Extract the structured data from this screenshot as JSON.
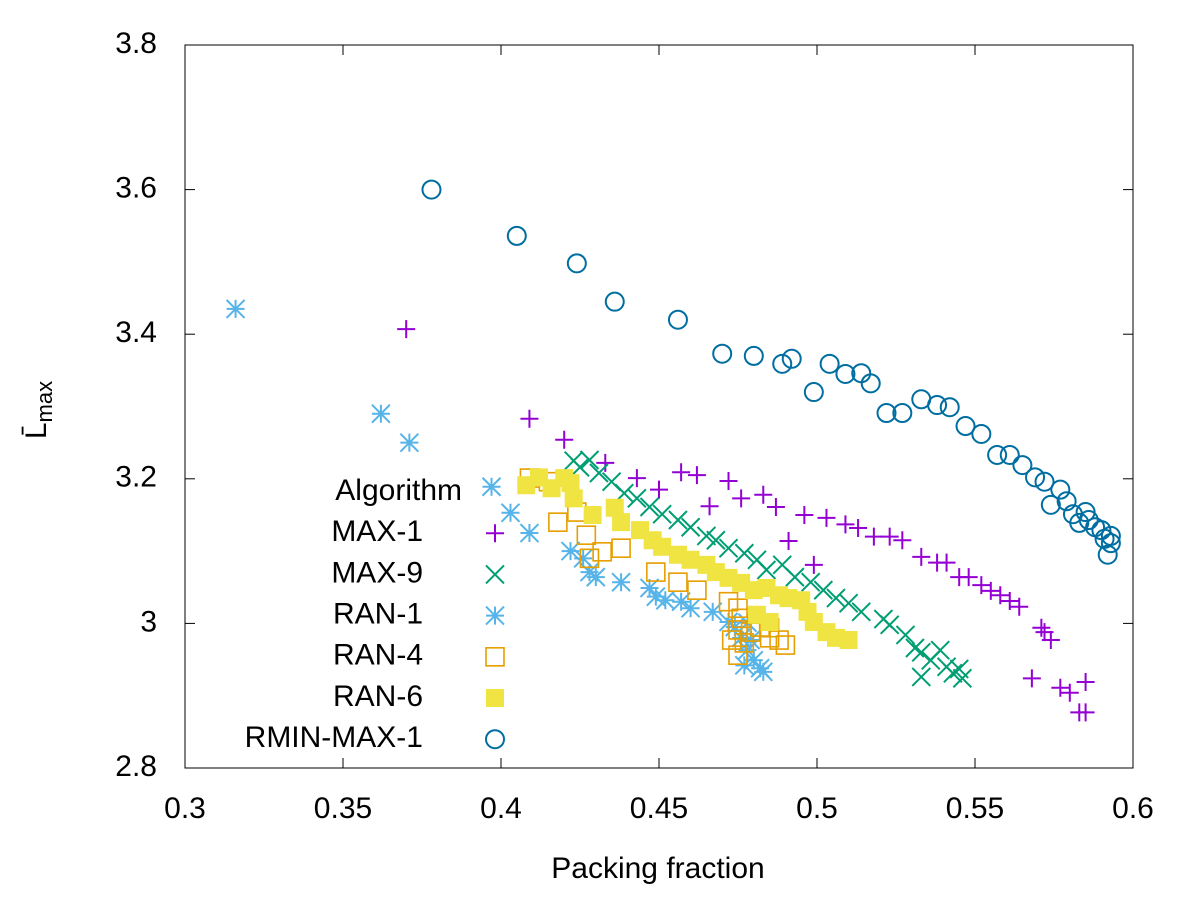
{
  "chart_data": {
    "type": "scatter",
    "xlabel": "Packing fraction",
    "ylabel": {
      "main": "L̄",
      "sub": "max"
    },
    "legend_title": "Algorithm",
    "legend": "bottom-left",
    "xlim": [
      0.3,
      0.6
    ],
    "xticks": [
      0.3,
      0.35,
      0.4,
      0.45,
      0.5,
      0.55,
      0.6
    ],
    "ylim": [
      2.8,
      3.8
    ],
    "yticks": [
      2.8,
      3,
      3.2,
      3.4,
      3.6,
      3.8
    ],
    "series": [
      {
        "name": "MAX-1",
        "color": "#9400d3",
        "marker": "plus",
        "x": [
          0.37,
          0.409,
          0.42,
          0.433,
          0.443,
          0.45,
          0.457,
          0.462,
          0.466,
          0.472,
          0.476,
          0.483,
          0.487,
          0.491,
          0.496,
          0.499,
          0.503,
          0.509,
          0.513,
          0.518,
          0.523,
          0.527,
          0.533,
          0.538,
          0.541,
          0.545,
          0.548,
          0.552,
          0.555,
          0.558,
          0.561,
          0.564,
          0.568,
          0.571,
          0.572,
          0.574,
          0.577,
          0.58,
          0.583,
          0.585,
          0.585
        ],
        "values": [
          3.407,
          3.283,
          3.254,
          3.222,
          3.201,
          3.185,
          3.209,
          3.205,
          3.162,
          3.197,
          3.173,
          3.178,
          3.161,
          3.114,
          3.15,
          3.081,
          3.146,
          3.137,
          3.132,
          3.12,
          3.12,
          3.115,
          3.092,
          3.084,
          3.084,
          3.064,
          3.064,
          3.053,
          3.045,
          3.039,
          3.031,
          3.023,
          2.924,
          2.994,
          2.988,
          2.977,
          2.911,
          2.904,
          2.877,
          2.919,
          2.877
        ]
      },
      {
        "name": "MAX-9",
        "color": "#009e73",
        "marker": "cross",
        "x": [
          0.423,
          0.425,
          0.428,
          0.431,
          0.435,
          0.439,
          0.443,
          0.447,
          0.451,
          0.456,
          0.46,
          0.465,
          0.468,
          0.472,
          0.477,
          0.481,
          0.484,
          0.489,
          0.493,
          0.498,
          0.502,
          0.506,
          0.51,
          0.514,
          0.521,
          0.523,
          0.528,
          0.531,
          0.533,
          0.536,
          0.533,
          0.539,
          0.541,
          0.543,
          0.546,
          0.545
        ],
        "values": [
          3.225,
          3.216,
          3.226,
          3.208,
          3.196,
          3.18,
          3.173,
          3.161,
          3.151,
          3.143,
          3.133,
          3.121,
          3.115,
          3.104,
          3.097,
          3.088,
          3.074,
          3.081,
          3.064,
          3.057,
          3.046,
          3.035,
          3.028,
          3.016,
          3.006,
          2.998,
          2.984,
          2.966,
          2.96,
          2.949,
          2.926,
          2.963,
          2.94,
          2.931,
          2.924,
          2.937
        ]
      },
      {
        "name": "RAN-1",
        "color": "#56b4e9",
        "marker": "asterisk",
        "x": [
          0.316,
          0.362,
          0.371,
          0.397,
          0.403,
          0.409,
          0.422,
          0.426,
          0.428,
          0.43,
          0.438,
          0.447,
          0.449,
          0.452,
          0.457,
          0.46,
          0.467,
          0.472,
          0.474,
          0.476,
          0.478,
          0.48,
          0.482,
          0.483,
          0.477,
          0.479,
          0.478
        ],
        "values": [
          3.435,
          3.29,
          3.25,
          3.189,
          3.153,
          3.125,
          3.1,
          3.09,
          3.071,
          3.064,
          3.057,
          3.049,
          3.037,
          3.032,
          3.03,
          3.021,
          3.016,
          3.002,
          2.995,
          2.98,
          2.963,
          2.949,
          2.938,
          2.933,
          2.942,
          2.977,
          3.001
        ]
      },
      {
        "name": "RAN-4",
        "color": "#e69f00",
        "marker": "square-open",
        "x": [
          0.409,
          0.415,
          0.418,
          0.424,
          0.427,
          0.428,
          0.432,
          0.438,
          0.449,
          0.456,
          0.462,
          0.472,
          0.475,
          0.476,
          0.475,
          0.477,
          0.473,
          0.475,
          0.479,
          0.482,
          0.485,
          0.488,
          0.49,
          0.485
        ],
        "values": [
          3.201,
          3.196,
          3.14,
          3.154,
          3.122,
          3.09,
          3.099,
          3.104,
          3.071,
          3.057,
          3.046,
          3.03,
          3.021,
          3.007,
          2.991,
          2.973,
          2.977,
          2.956,
          2.988,
          2.995,
          2.994,
          2.977,
          2.97,
          2.98
        ]
      },
      {
        "name": "RAN-6",
        "color": "#f0e442",
        "marker": "square-filled",
        "x": [
          0.408,
          0.412,
          0.416,
          0.42,
          0.422,
          0.423,
          0.429,
          0.436,
          0.438,
          0.444,
          0.448,
          0.451,
          0.456,
          0.46,
          0.465,
          0.468,
          0.472,
          0.476,
          0.48,
          0.484,
          0.488,
          0.491,
          0.495,
          0.497,
          0.499,
          0.503,
          0.506,
          0.51,
          0.481,
          0.485
        ],
        "values": [
          3.191,
          3.202,
          3.187,
          3.201,
          3.194,
          3.173,
          3.15,
          3.16,
          3.14,
          3.129,
          3.115,
          3.106,
          3.095,
          3.088,
          3.081,
          3.071,
          3.063,
          3.056,
          3.046,
          3.049,
          3.039,
          3.035,
          3.032,
          3.016,
          3.002,
          2.988,
          2.98,
          2.977,
          3.012,
          3.002
        ]
      },
      {
        "name": "RMIN-MAX-1",
        "color": "#006ea0",
        "marker": "circle-open",
        "x": [
          0.378,
          0.405,
          0.424,
          0.436,
          0.456,
          0.47,
          0.48,
          0.489,
          0.492,
          0.499,
          0.504,
          0.509,
          0.514,
          0.517,
          0.522,
          0.527,
          0.533,
          0.538,
          0.542,
          0.547,
          0.552,
          0.557,
          0.561,
          0.565,
          0.569,
          0.572,
          0.574,
          0.577,
          0.579,
          0.581,
          0.583,
          0.585,
          0.586,
          0.588,
          0.59,
          0.591,
          0.592,
          0.593,
          0.593
        ],
        "values": [
          3.6,
          3.536,
          3.498,
          3.445,
          3.42,
          3.373,
          3.37,
          3.359,
          3.366,
          3.32,
          3.359,
          3.345,
          3.346,
          3.332,
          3.291,
          3.291,
          3.31,
          3.302,
          3.299,
          3.273,
          3.262,
          3.233,
          3.233,
          3.219,
          3.202,
          3.196,
          3.164,
          3.185,
          3.169,
          3.151,
          3.139,
          3.154,
          3.143,
          3.133,
          3.129,
          3.117,
          3.095,
          3.121,
          3.111
        ]
      }
    ]
  }
}
